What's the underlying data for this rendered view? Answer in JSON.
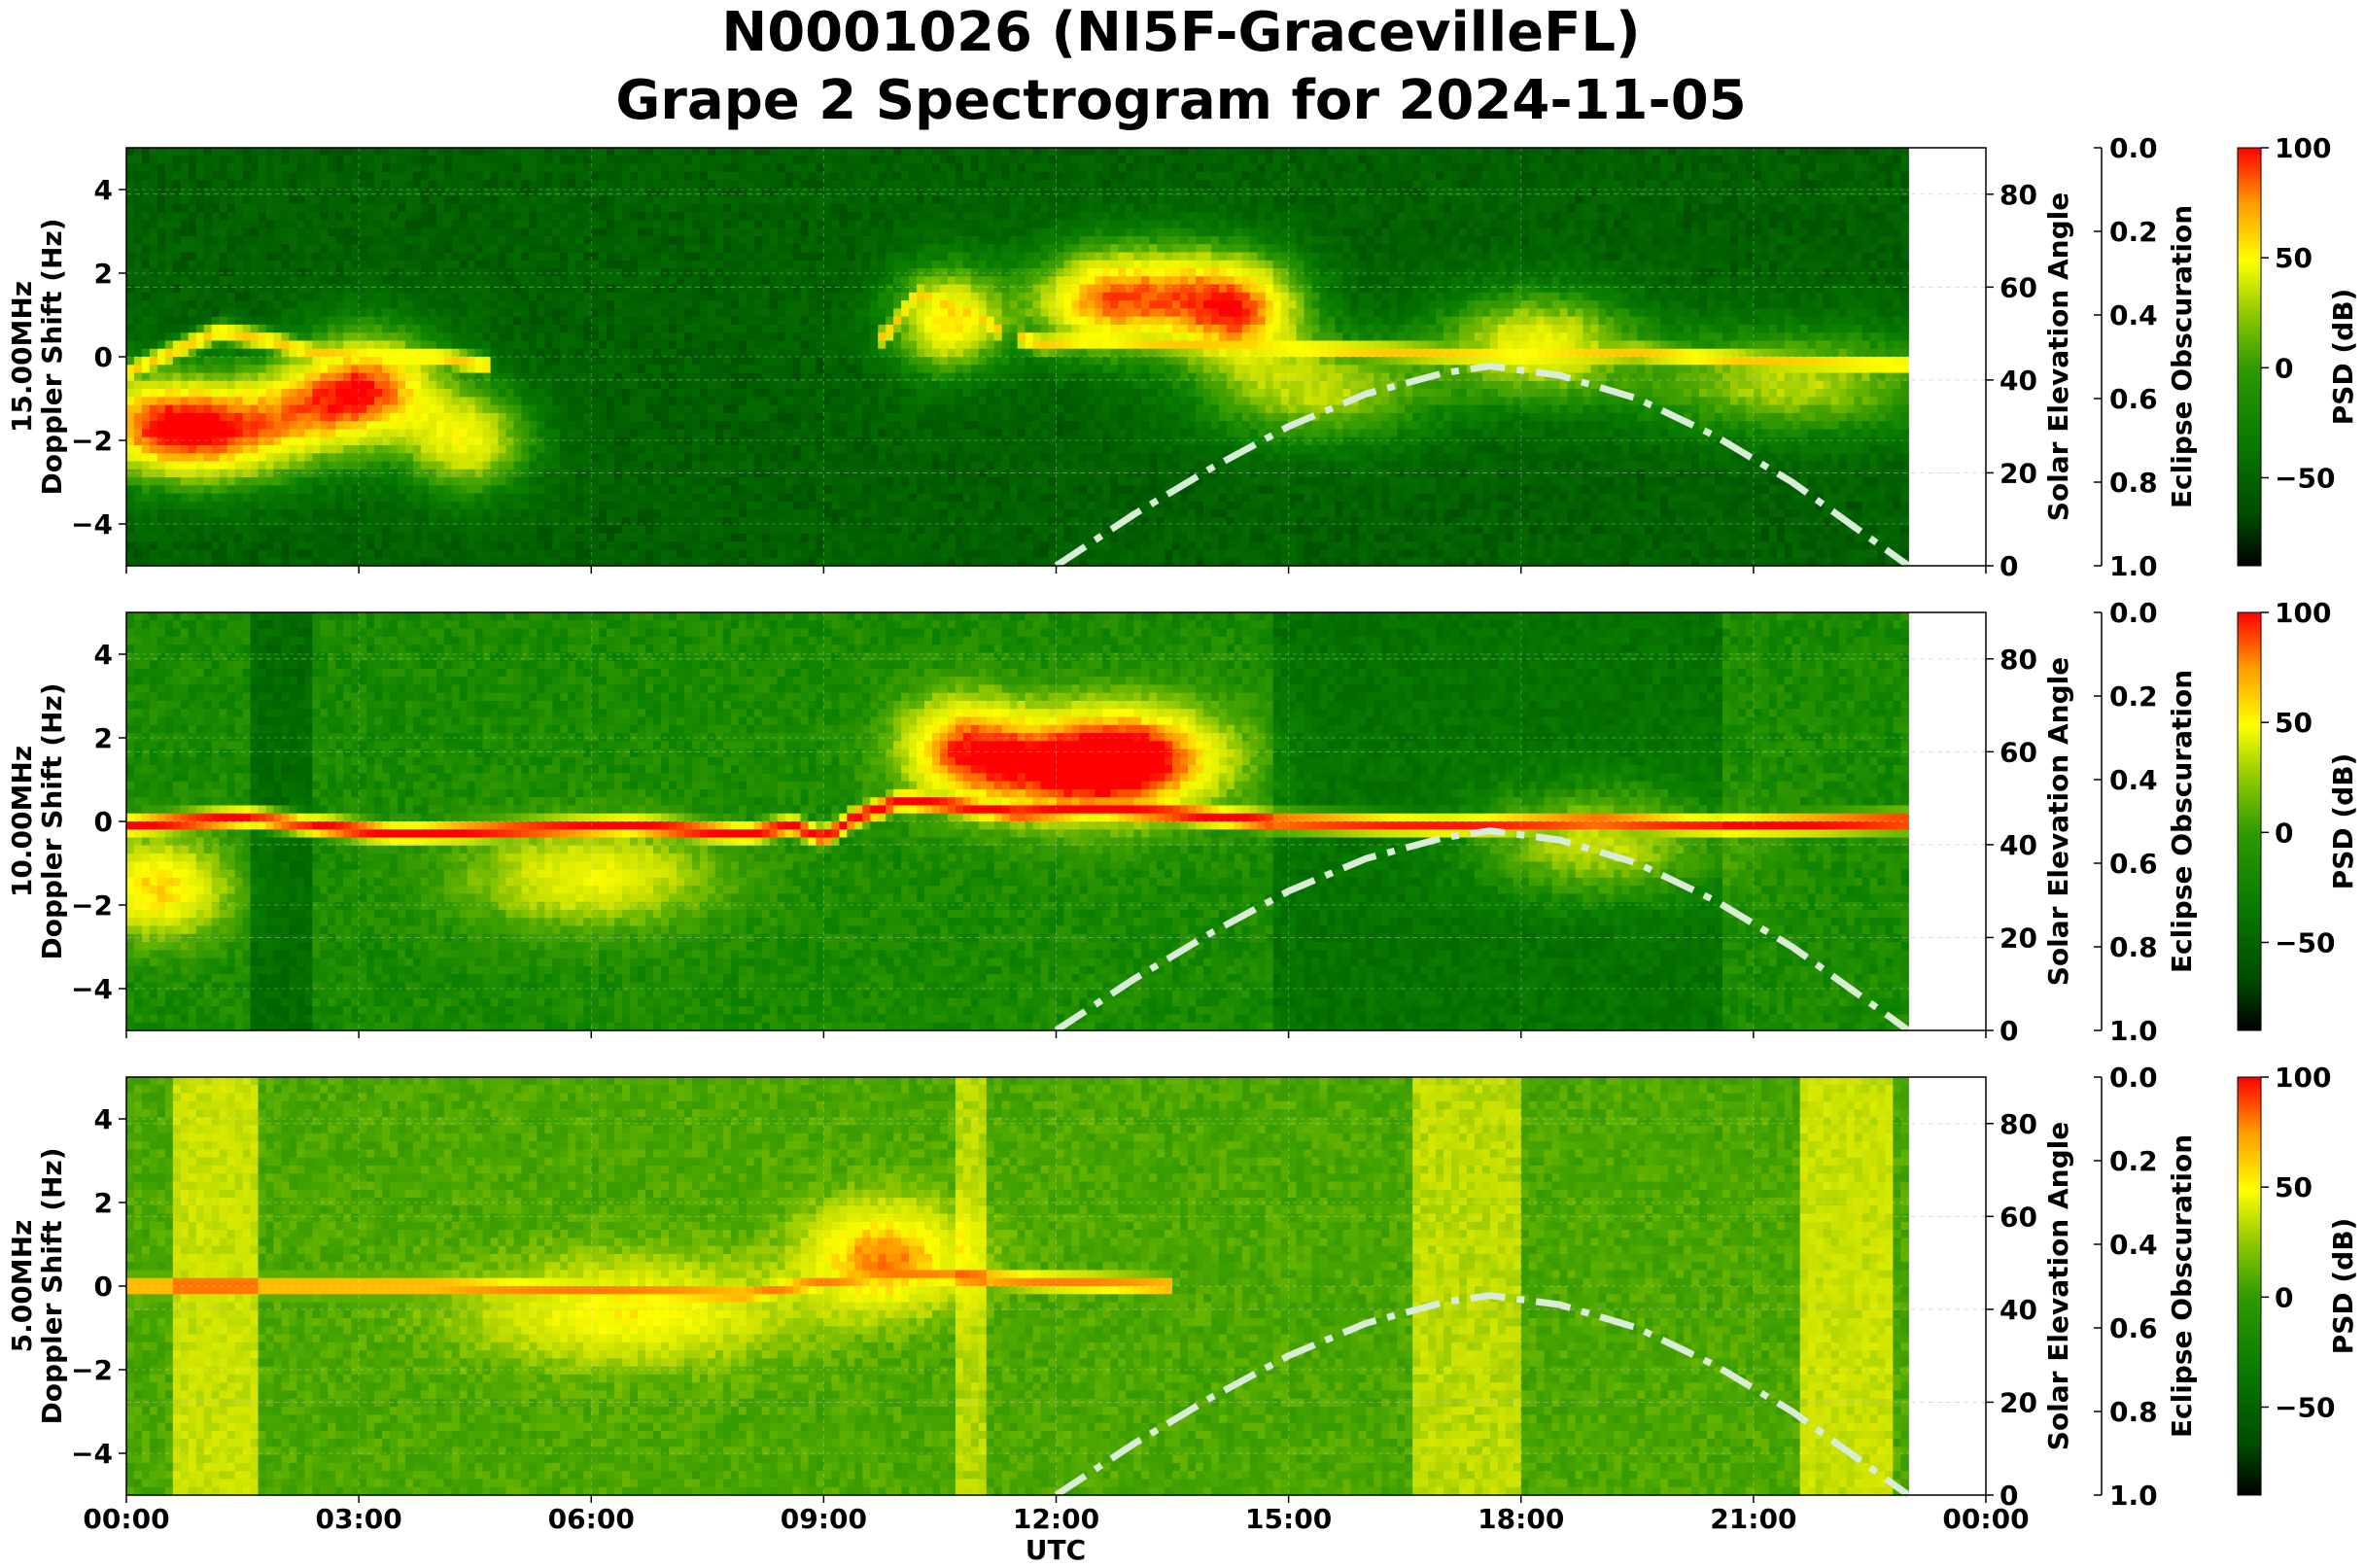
{
  "figure": {
    "title_line1": "N0001026 (NI5F-GracevilleFL)",
    "title_line2": "Grape 2 Spectrogram for 2024-11-05",
    "xlabel": "UTC",
    "x_ticks": [
      "00:00",
      "03:00",
      "06:00",
      "09:00",
      "12:00",
      "15:00",
      "18:00",
      "21:00",
      "00:00"
    ]
  },
  "colors": {
    "background_green": "#0a7a00",
    "colormap": [
      "#000000",
      "#005c00",
      "#0a8000",
      "#4da800",
      "#c8e000",
      "#ffff00",
      "#ff8c00",
      "#ff0000"
    ],
    "solar_curve": "#d8ecd8"
  },
  "chart_data": [
    {
      "type": "heatmap",
      "panel": "15.00MHz",
      "ylabel_line1": "15.00MHz",
      "ylabel_line2": "Doppler Shift (Hz)",
      "ylim": [
        -5,
        5
      ],
      "y_ticks": [
        "4",
        "2",
        "0",
        "−2",
        "−4"
      ],
      "xlim_hours": [
        0,
        24
      ],
      "data_end_hour": 23.0,
      "right_axis": {
        "label": "Solar Elevation Angle",
        "ylim": [
          0,
          90
        ],
        "ticks": [
          "0",
          "20",
          "40",
          "60",
          "80"
        ]
      },
      "eclipse_axis": {
        "label": "Eclipse Obscuration",
        "ylim": [
          1.0,
          0.0
        ],
        "ticks": [
          "0.0",
          "0.2",
          "0.4",
          "0.6",
          "0.8",
          "1.0"
        ]
      },
      "colorbar": {
        "label": "PSD (dB)",
        "range": [
          -90,
          100
        ],
        "ticks": [
          "100",
          "50",
          "0",
          "−50"
        ]
      },
      "noise_level": 0.16,
      "noise_bands": [],
      "doppler_trace": [
        [
          0.0,
          -0.4
        ],
        [
          0.7,
          0.2
        ],
        [
          1.2,
          0.6
        ],
        [
          1.8,
          0.4
        ],
        [
          2.4,
          0.1
        ],
        [
          3.2,
          0.0
        ],
        [
          4.0,
          0.0
        ],
        [
          4.6,
          -0.2
        ],
        [
          5.5,
          -0.5
        ],
        [
          7.0,
          -0.3
        ],
        [
          9.0,
          0.0
        ],
        [
          9.8,
          0.5
        ],
        [
          10.2,
          1.5
        ],
        [
          10.8,
          1.1
        ],
        [
          11.3,
          0.6
        ],
        [
          11.8,
          0.3
        ],
        [
          12.5,
          0.4
        ],
        [
          13.5,
          0.3
        ],
        [
          15.0,
          0.2
        ],
        [
          16.5,
          0.1
        ],
        [
          18.0,
          0.0
        ],
        [
          19.5,
          0.1
        ],
        [
          21.0,
          -0.1
        ],
        [
          22.9,
          -0.2
        ]
      ],
      "trace_segments": [
        [
          0.0,
          4.7
        ],
        [
          9.7,
          11.3
        ],
        [
          11.5,
          23.0
        ]
      ],
      "trace_intensity": 0.7,
      "solar_elevation": [
        [
          12.0,
          0.0
        ],
        [
          13.0,
          11.0
        ],
        [
          14.0,
          21.0
        ],
        [
          15.0,
          30.0
        ],
        [
          16.0,
          37.0
        ],
        [
          17.0,
          41.5
        ],
        [
          17.6,
          43.0
        ],
        [
          18.5,
          41.0
        ],
        [
          19.5,
          36.0
        ],
        [
          20.5,
          28.0
        ],
        [
          21.5,
          18.0
        ],
        [
          22.5,
          6.0
        ],
        [
          23.0,
          0.0
        ]
      ],
      "blobs": [
        [
          0.3,
          -1.6,
          0.9,
          0.6
        ],
        [
          1.3,
          -1.8,
          1.0,
          0.6
        ],
        [
          2.6,
          -1.2,
          1.0,
          0.5
        ],
        [
          3.2,
          -0.5,
          0.9,
          0.5
        ],
        [
          4.4,
          -2.0,
          0.8,
          0.5
        ],
        [
          10.6,
          0.9,
          0.7,
          0.6
        ],
        [
          12.5,
          1.3,
          0.9,
          0.5
        ],
        [
          13.6,
          1.5,
          1.2,
          0.5
        ],
        [
          14.4,
          1.0,
          0.8,
          0.5
        ],
        [
          15.4,
          -0.8,
          1.5,
          0.4
        ],
        [
          18.2,
          0.3,
          1.2,
          0.5
        ],
        [
          21.5,
          -0.6,
          2.0,
          0.4
        ]
      ]
    },
    {
      "type": "heatmap",
      "panel": "10.00MHz",
      "ylabel_line1": "10.00MHz",
      "ylabel_line2": "Doppler Shift (Hz)",
      "ylim": [
        -5,
        5
      ],
      "y_ticks": [
        "4",
        "2",
        "0",
        "−2",
        "−4"
      ],
      "xlim_hours": [
        0,
        24
      ],
      "data_end_hour": 23.0,
      "right_axis": {
        "label": "Solar Elevation Angle",
        "ylim": [
          0,
          90
        ],
        "ticks": [
          "0",
          "20",
          "40",
          "60",
          "80"
        ]
      },
      "eclipse_axis": {
        "label": "Eclipse Obscuration",
        "ylim": [
          1.0,
          0.0
        ],
        "ticks": [
          "0.0",
          "0.2",
          "0.4",
          "0.6",
          "0.8",
          "1.0"
        ]
      },
      "colorbar": {
        "label": "PSD (dB)",
        "range": [
          -90,
          100
        ],
        "ticks": [
          "100",
          "50",
          "0",
          "−50"
        ]
      },
      "noise_level": 0.32,
      "noise_bands": [
        [
          1.6,
          2.4,
          0.2
        ],
        [
          14.8,
          20.6,
          0.23
        ]
      ],
      "doppler_trace": [
        [
          0.0,
          -0.1
        ],
        [
          0.8,
          0.0
        ],
        [
          1.6,
          0.1
        ],
        [
          2.4,
          -0.1
        ],
        [
          3.5,
          -0.3
        ],
        [
          5.0,
          -0.2
        ],
        [
          6.5,
          -0.1
        ],
        [
          8.0,
          -0.3
        ],
        [
          8.6,
          -0.1
        ],
        [
          9.0,
          -0.4
        ],
        [
          9.4,
          0.1
        ],
        [
          10.0,
          0.5
        ],
        [
          10.6,
          0.4
        ],
        [
          11.5,
          0.2
        ],
        [
          12.5,
          0.3
        ],
        [
          13.5,
          0.2
        ],
        [
          14.8,
          0.0
        ],
        [
          17.0,
          -0.1
        ],
        [
          19.0,
          0.0
        ],
        [
          20.6,
          -0.1
        ],
        [
          22.9,
          0.0
        ]
      ],
      "trace_segments": [
        [
          0.0,
          23.0
        ]
      ],
      "trace_intensity": 0.86,
      "solar_elevation": [
        [
          12.0,
          0.0
        ],
        [
          13.0,
          11.0
        ],
        [
          14.0,
          21.0
        ],
        [
          15.0,
          30.0
        ],
        [
          16.0,
          37.0
        ],
        [
          17.0,
          41.5
        ],
        [
          17.6,
          43.0
        ],
        [
          18.5,
          41.0
        ],
        [
          19.5,
          36.0
        ],
        [
          20.5,
          28.0
        ],
        [
          21.5,
          18.0
        ],
        [
          22.5,
          6.0
        ],
        [
          23.0,
          0.0
        ]
      ],
      "blobs": [
        [
          0.4,
          -1.6,
          0.9,
          0.45
        ],
        [
          10.8,
          1.8,
          0.8,
          0.5
        ],
        [
          12.2,
          1.2,
          1.4,
          0.55
        ],
        [
          13.0,
          1.6,
          1.2,
          0.5
        ],
        [
          6.0,
          -1.3,
          1.6,
          0.35
        ],
        [
          19.0,
          -0.5,
          1.5,
          0.35
        ]
      ]
    },
    {
      "type": "heatmap",
      "panel": "5.00MHz",
      "ylabel_line1": "5.00MHz",
      "ylabel_line2": "Doppler Shift (Hz)",
      "ylim": [
        -5,
        5
      ],
      "y_ticks": [
        "4",
        "2",
        "0",
        "−2",
        "−4"
      ],
      "xlim_hours": [
        0,
        24
      ],
      "data_end_hour": 23.0,
      "right_axis": {
        "label": "Solar Elevation Angle",
        "ylim": [
          0,
          90
        ],
        "ticks": [
          "0",
          "20",
          "40",
          "60",
          "80"
        ]
      },
      "eclipse_axis": {
        "label": "Eclipse Obscuration",
        "ylim": [
          1.0,
          0.0
        ],
        "ticks": [
          "0.0",
          "0.2",
          "0.4",
          "0.6",
          "0.8",
          "1.0"
        ]
      },
      "colorbar": {
        "label": "PSD (dB)",
        "range": [
          -90,
          100
        ],
        "ticks": [
          "100",
          "50",
          "0",
          "−50"
        ]
      },
      "noise_level": 0.42,
      "noise_bands": [
        [
          0.6,
          1.7,
          0.58
        ],
        [
          10.7,
          11.1,
          0.55
        ],
        [
          16.6,
          18.0,
          0.56
        ],
        [
          21.6,
          22.8,
          0.58
        ]
      ],
      "doppler_trace": [
        [
          0.0,
          0.0
        ],
        [
          2.0,
          0.0
        ],
        [
          4.0,
          0.0
        ],
        [
          6.0,
          -0.1
        ],
        [
          8.0,
          -0.2
        ],
        [
          9.0,
          0.1
        ],
        [
          10.0,
          0.3
        ],
        [
          11.0,
          0.2
        ],
        [
          12.0,
          0.1
        ],
        [
          13.5,
          0.0
        ]
      ],
      "trace_segments": [
        [
          0.0,
          13.5
        ]
      ],
      "trace_intensity": 0.66,
      "solar_elevation": [
        [
          12.0,
          0.0
        ],
        [
          13.0,
          11.0
        ],
        [
          14.0,
          21.0
        ],
        [
          15.0,
          30.0
        ],
        [
          16.0,
          37.0
        ],
        [
          17.0,
          41.5
        ],
        [
          17.6,
          43.0
        ],
        [
          18.5,
          41.0
        ],
        [
          19.5,
          36.0
        ],
        [
          20.5,
          28.0
        ],
        [
          21.5,
          18.0
        ],
        [
          22.5,
          6.0
        ],
        [
          23.0,
          0.0
        ]
      ],
      "blobs": [
        [
          9.8,
          0.7,
          1.0,
          0.45
        ],
        [
          6.5,
          -0.6,
          2.0,
          0.3
        ]
      ]
    }
  ]
}
